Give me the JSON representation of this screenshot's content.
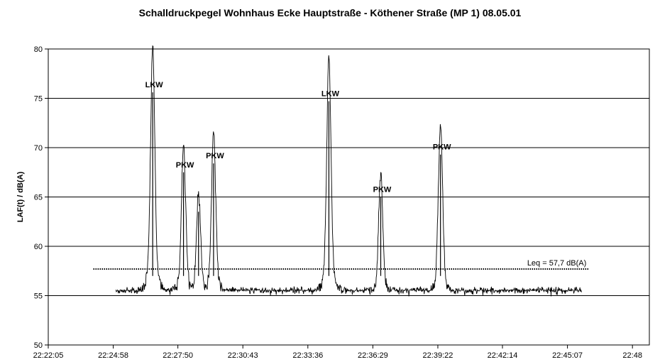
{
  "chart_data": {
    "type": "line",
    "title": "Schalldruckpegel Wohnhaus Ecke Hauptstraße - Köthener Straße (MP 1) 08.05.01",
    "xlabel": "",
    "ylabel": "LAF(t) / dB(A)",
    "ylim": [
      50,
      80
    ],
    "yticks": [
      50,
      55,
      60,
      65,
      70,
      75,
      80
    ],
    "xlim_seconds": [
      0,
      1600
    ],
    "xticks": [
      {
        "t": 0,
        "label": "22:22:05"
      },
      {
        "t": 173,
        "label": "22:24:58"
      },
      {
        "t": 345,
        "label": "22:27:50"
      },
      {
        "t": 518,
        "label": "22:30:43"
      },
      {
        "t": 691,
        "label": "22:33:36"
      },
      {
        "t": 864,
        "label": "22:36:29"
      },
      {
        "t": 1037,
        "label": "22:39:22"
      },
      {
        "t": 1209,
        "label": "22:42:14"
      },
      {
        "t": 1382,
        "label": "22:45:07"
      },
      {
        "t": 1555,
        "label": "22:48"
      }
    ],
    "grid": true,
    "baseline_level": 55.0,
    "series_start_t": 180,
    "series_end_t": 1420,
    "peaks": [
      {
        "t": 278,
        "value": 75.6,
        "label": "LKW"
      },
      {
        "t": 360,
        "value": 67.5,
        "label": "PKW"
      },
      {
        "t": 400,
        "value": 63.5,
        "label": ""
      },
      {
        "t": 440,
        "value": 68.4,
        "label": "PKW"
      },
      {
        "t": 747,
        "value": 74.7,
        "label": "LKW"
      },
      {
        "t": 885,
        "value": 65.0,
        "label": "PKW"
      },
      {
        "t": 1044,
        "value": 69.3,
        "label": "PKW"
      }
    ],
    "leq": {
      "value": 57.7,
      "label": "Leq = 57,7 dB(A)",
      "t_start": 120,
      "t_end": 1440
    }
  }
}
